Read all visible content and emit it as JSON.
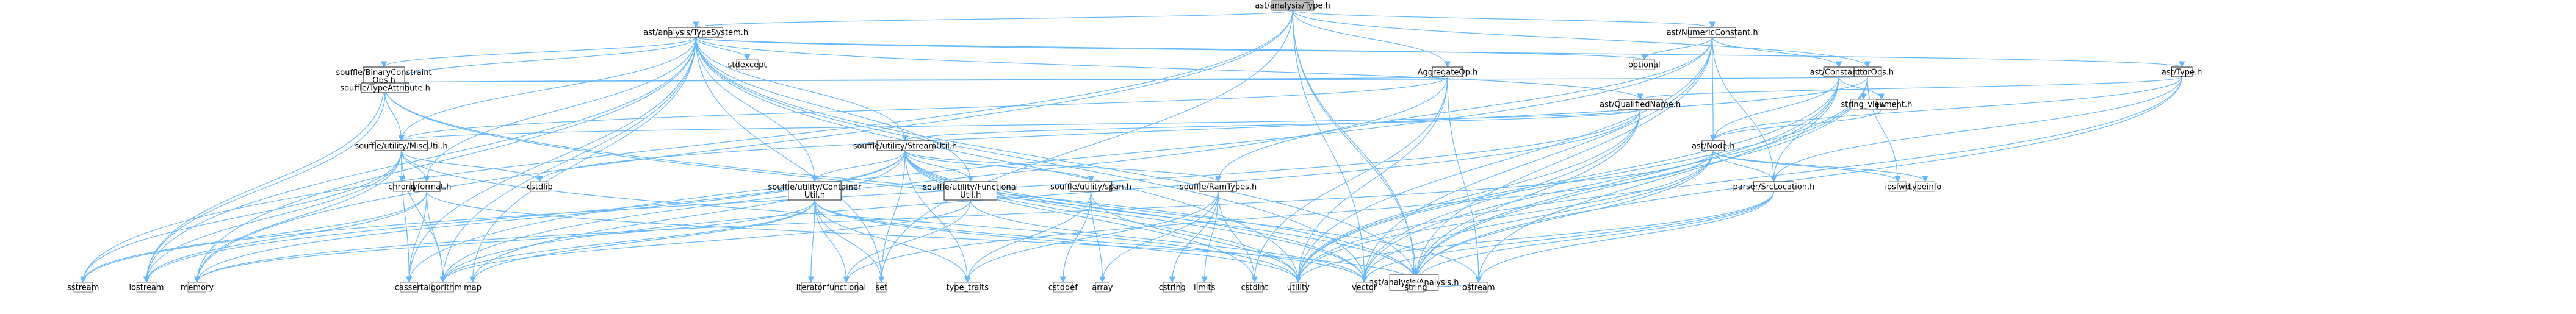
{
  "graph": {
    "nodes": [
      {
        "id": "root",
        "label": [
          "ast/analysis/Type.h"
        ],
        "kind": "root"
      },
      {
        "id": "typesystem",
        "label": [
          "ast/analysis/TypeSystem.h"
        ],
        "kind": "project"
      },
      {
        "id": "numericconstant",
        "label": [
          "ast/NumericConstant.h"
        ],
        "kind": "project"
      },
      {
        "id": "analysis",
        "label": [
          "ast/analysis/Analysis.h"
        ],
        "kind": "project"
      },
      {
        "id": "binaryconstraint",
        "label": [
          "souffle/BinaryConstraint",
          "Ops.h"
        ],
        "kind": "project"
      },
      {
        "id": "aggregateop",
        "label": [
          "AggregateOp.h"
        ],
        "kind": "project"
      },
      {
        "id": "functorops",
        "label": [
          "FunctorOps.h"
        ],
        "kind": "project"
      },
      {
        "id": "asttype",
        "label": [
          "ast/Type.h"
        ],
        "kind": "project"
      },
      {
        "id": "constant",
        "label": [
          "ast/Constant.h"
        ],
        "kind": "project"
      },
      {
        "id": "typeattribute",
        "label": [
          "souffle/TypeAttribute.h"
        ],
        "kind": "project"
      },
      {
        "id": "qualifiedname",
        "label": [
          "ast/QualifiedName.h"
        ],
        "kind": "project"
      },
      {
        "id": "argument",
        "label": [
          "ast/Argument.h"
        ],
        "kind": "project"
      },
      {
        "id": "miscutil",
        "label": [
          "souffle/utility/MiscUtil.h"
        ],
        "kind": "project"
      },
      {
        "id": "streamutil",
        "label": [
          "souffle/utility/StreamUtil.h"
        ],
        "kind": "project"
      },
      {
        "id": "astnode",
        "label": [
          "ast/Node.h"
        ],
        "kind": "project"
      },
      {
        "id": "tinyformat",
        "label": [
          "tinyformat.h"
        ],
        "kind": "project"
      },
      {
        "id": "containerutil",
        "label": [
          "souffle/utility/Container",
          "Util.h"
        ],
        "kind": "project"
      },
      {
        "id": "functionalutil",
        "label": [
          "souffle/utility/Functional",
          "Util.h"
        ],
        "kind": "project"
      },
      {
        "id": "span",
        "label": [
          "souffle/utility/span.h"
        ],
        "kind": "project"
      },
      {
        "id": "ramtypes",
        "label": [
          "souffle/RamTypes.h"
        ],
        "kind": "project"
      },
      {
        "id": "srclocation",
        "label": [
          "parser/SrcLocation.h"
        ],
        "kind": "project"
      },
      {
        "id": "optional",
        "label": [
          "optional"
        ],
        "kind": "system"
      },
      {
        "id": "stdexcept",
        "label": [
          "stdexcept"
        ],
        "kind": "system"
      },
      {
        "id": "string_view",
        "label": [
          "string_view"
        ],
        "kind": "system"
      },
      {
        "id": "chrono",
        "label": [
          "chrono"
        ],
        "kind": "system"
      },
      {
        "id": "cstdlib",
        "label": [
          "cstdlib"
        ],
        "kind": "system"
      },
      {
        "id": "iosfwd",
        "label": [
          "iosfwd"
        ],
        "kind": "system"
      },
      {
        "id": "typeinfo",
        "label": [
          "typeinfo"
        ],
        "kind": "system"
      },
      {
        "id": "sstream",
        "label": [
          "sstream"
        ],
        "kind": "system"
      },
      {
        "id": "iostream",
        "label": [
          "iostream"
        ],
        "kind": "system"
      },
      {
        "id": "memory",
        "label": [
          "memory"
        ],
        "kind": "system"
      },
      {
        "id": "cassert",
        "label": [
          "cassert"
        ],
        "kind": "system"
      },
      {
        "id": "algorithm",
        "label": [
          "algorithm"
        ],
        "kind": "system"
      },
      {
        "id": "map",
        "label": [
          "map"
        ],
        "kind": "system"
      },
      {
        "id": "iterator",
        "label": [
          "iterator"
        ],
        "kind": "system"
      },
      {
        "id": "functional",
        "label": [
          "functional"
        ],
        "kind": "system"
      },
      {
        "id": "set",
        "label": [
          "set"
        ],
        "kind": "system"
      },
      {
        "id": "type_traits",
        "label": [
          "type_traits"
        ],
        "kind": "system"
      },
      {
        "id": "cstddef",
        "label": [
          "cstddef"
        ],
        "kind": "system"
      },
      {
        "id": "array",
        "label": [
          "array"
        ],
        "kind": "system"
      },
      {
        "id": "cstring",
        "label": [
          "cstring"
        ],
        "kind": "system"
      },
      {
        "id": "limits",
        "label": [
          "limits"
        ],
        "kind": "system"
      },
      {
        "id": "cstdint",
        "label": [
          "cstdint"
        ],
        "kind": "system"
      },
      {
        "id": "utility",
        "label": [
          "utility"
        ],
        "kind": "system"
      },
      {
        "id": "vector",
        "label": [
          "vector"
        ],
        "kind": "system"
      },
      {
        "id": "string",
        "label": [
          "string"
        ],
        "kind": "system"
      },
      {
        "id": "ostream",
        "label": [
          "ostream"
        ],
        "kind": "system"
      }
    ],
    "edges": [
      [
        "root",
        "typesystem"
      ],
      [
        "root",
        "numericconstant"
      ],
      [
        "root",
        "analysis"
      ],
      [
        "root",
        "aggregateop"
      ],
      [
        "root",
        "functorops"
      ],
      [
        "root",
        "sstream"
      ],
      [
        "root",
        "memory"
      ],
      [
        "root",
        "set"
      ],
      [
        "root",
        "string"
      ],
      [
        "root",
        "vector"
      ],
      [
        "typesystem",
        "binaryconstraint"
      ],
      [
        "typesystem",
        "typeattribute"
      ],
      [
        "typesystem",
        "asttype"
      ],
      [
        "typesystem",
        "qualifiedname"
      ],
      [
        "typesystem",
        "miscutil"
      ],
      [
        "typesystem",
        "streamutil"
      ],
      [
        "typesystem",
        "containerutil"
      ],
      [
        "typesystem",
        "functionalutil"
      ],
      [
        "typesystem",
        "tinyformat"
      ],
      [
        "typesystem",
        "optional"
      ],
      [
        "typesystem",
        "stdexcept"
      ],
      [
        "typesystem",
        "algorithm"
      ],
      [
        "typesystem",
        "cassert"
      ],
      [
        "typesystem",
        "iostream"
      ],
      [
        "typesystem",
        "map"
      ],
      [
        "typesystem",
        "memory"
      ],
      [
        "typesystem",
        "set"
      ],
      [
        "typesystem",
        "string"
      ],
      [
        "typesystem",
        "utility"
      ],
      [
        "typesystem",
        "vector"
      ],
      [
        "numericconstant",
        "constant"
      ],
      [
        "numericconstant",
        "astnode"
      ],
      [
        "numericconstant",
        "srclocation"
      ],
      [
        "numericconstant",
        "optional"
      ],
      [
        "numericconstant",
        "string"
      ],
      [
        "numericconstant",
        "utility"
      ],
      [
        "numericconstant",
        "vector"
      ],
      [
        "numericconstant",
        "cassert"
      ],
      [
        "numericconstant",
        "ramtypes"
      ],
      [
        "analysis",
        "ostream"
      ],
      [
        "analysis",
        "string"
      ],
      [
        "binaryconstraint",
        "typeattribute"
      ],
      [
        "binaryconstraint",
        "miscutil"
      ],
      [
        "binaryconstraint",
        "iostream"
      ],
      [
        "binaryconstraint",
        "string"
      ],
      [
        "binaryconstraint",
        "vector"
      ],
      [
        "aggregateop",
        "typeattribute"
      ],
      [
        "aggregateop",
        "miscutil"
      ],
      [
        "aggregateop",
        "cstdint"
      ],
      [
        "aggregateop",
        "utility"
      ],
      [
        "aggregateop",
        "ostream"
      ],
      [
        "aggregateop",
        "algorithm"
      ],
      [
        "functorops",
        "typeattribute"
      ],
      [
        "functorops",
        "string_view"
      ],
      [
        "functorops",
        "iosfwd"
      ],
      [
        "functorops",
        "string"
      ],
      [
        "functorops",
        "vector"
      ],
      [
        "functorops",
        "cstdlib"
      ],
      [
        "functorops",
        "utility"
      ],
      [
        "asttype",
        "qualifiedname"
      ],
      [
        "asttype",
        "astnode"
      ],
      [
        "asttype",
        "srclocation"
      ],
      [
        "asttype",
        "string"
      ],
      [
        "asttype",
        "utility"
      ],
      [
        "constant",
        "argument"
      ],
      [
        "constant",
        "astnode"
      ],
      [
        "constant",
        "srclocation"
      ],
      [
        "constant",
        "ostream"
      ],
      [
        "constant",
        "string"
      ],
      [
        "constant",
        "utility"
      ],
      [
        "typeattribute",
        "iostream"
      ],
      [
        "qualifiedname",
        "miscutil"
      ],
      [
        "qualifiedname",
        "streamutil"
      ],
      [
        "qualifiedname",
        "algorithm"
      ],
      [
        "qualifiedname",
        "string"
      ],
      [
        "qualifiedname",
        "utility"
      ],
      [
        "qualifiedname",
        "vector"
      ],
      [
        "qualifiedname",
        "sstream"
      ],
      [
        "argument",
        "astnode"
      ],
      [
        "miscutil",
        "tinyformat"
      ],
      [
        "miscutil",
        "chrono"
      ],
      [
        "miscutil",
        "cstdlib"
      ],
      [
        "miscutil",
        "iostream"
      ],
      [
        "miscutil",
        "memory"
      ],
      [
        "miscutil",
        "sstream"
      ],
      [
        "miscutil",
        "cassert"
      ],
      [
        "miscutil",
        "utility"
      ],
      [
        "miscutil",
        "algorithm"
      ],
      [
        "streamutil",
        "containerutil"
      ],
      [
        "streamutil",
        "functionalutil"
      ],
      [
        "streamutil",
        "span"
      ],
      [
        "streamutil",
        "ramtypes"
      ],
      [
        "streamutil",
        "map"
      ],
      [
        "streamutil",
        "set"
      ],
      [
        "streamutil",
        "type_traits"
      ],
      [
        "streamutil",
        "ostream"
      ],
      [
        "streamutil",
        "string"
      ],
      [
        "streamutil",
        "utility"
      ],
      [
        "streamutil",
        "vector"
      ],
      [
        "streamutil",
        "iostream"
      ],
      [
        "streamutil",
        "memory"
      ],
      [
        "streamutil",
        "cstdint"
      ],
      [
        "astnode",
        "srclocation"
      ],
      [
        "astnode",
        "iosfwd"
      ],
      [
        "astnode",
        "typeinfo"
      ],
      [
        "astnode",
        "string"
      ],
      [
        "astnode",
        "utility"
      ],
      [
        "astnode",
        "vector"
      ],
      [
        "astnode",
        "functional"
      ],
      [
        "astnode",
        "memory"
      ],
      [
        "tinyformat",
        "algorithm"
      ],
      [
        "tinyformat",
        "cassert"
      ],
      [
        "tinyformat",
        "iostream"
      ],
      [
        "tinyformat",
        "sstream"
      ],
      [
        "tinyformat",
        "string"
      ],
      [
        "containerutil",
        "functional"
      ],
      [
        "containerutil",
        "iterator"
      ],
      [
        "containerutil",
        "map"
      ],
      [
        "containerutil",
        "memory"
      ],
      [
        "containerutil",
        "set"
      ],
      [
        "containerutil",
        "type_traits"
      ],
      [
        "containerutil",
        "utility"
      ],
      [
        "containerutil",
        "vector"
      ],
      [
        "containerutil",
        "algorithm"
      ],
      [
        "functionalutil",
        "functional"
      ],
      [
        "functionalutil",
        "vector"
      ],
      [
        "functionalutil",
        "algorithm"
      ],
      [
        "span",
        "array"
      ],
      [
        "span",
        "cstddef"
      ],
      [
        "span",
        "type_traits"
      ],
      [
        "span",
        "utility"
      ],
      [
        "ramtypes",
        "array"
      ],
      [
        "ramtypes",
        "cstdint"
      ],
      [
        "ramtypes",
        "cstring"
      ],
      [
        "ramtypes",
        "limits"
      ],
      [
        "ramtypes",
        "type_traits"
      ],
      [
        "srclocation",
        "ostream"
      ],
      [
        "srclocation",
        "string"
      ],
      [
        "srclocation",
        "utility"
      ],
      [
        "srclocation",
        "vector"
      ]
    ]
  }
}
